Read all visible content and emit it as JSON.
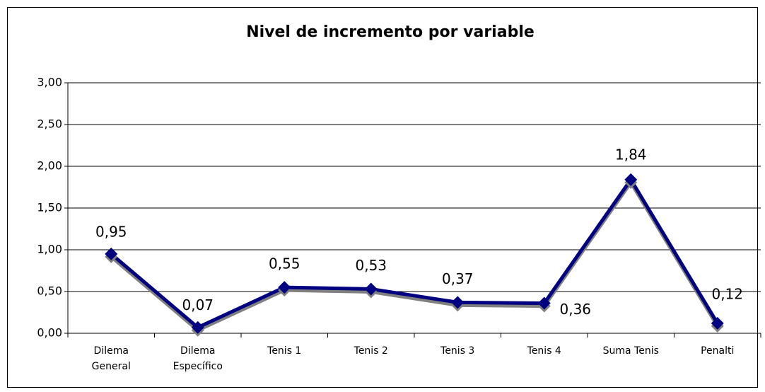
{
  "chart_data": {
    "type": "line",
    "title": "Nivel de incremento por variable",
    "categories": [
      "Dilema General",
      "Dilema Específico",
      "Tenis 1",
      "Tenis 2",
      "Tenis 3",
      "Tenis 4",
      "Suma Tenis",
      "Penalti"
    ],
    "values": [
      0.95,
      0.07,
      0.55,
      0.53,
      0.37,
      0.36,
      1.84,
      0.12
    ],
    "value_labels": [
      "0,95",
      "0,07",
      "0,55",
      "0,53",
      "0,37",
      "0,36",
      "1,84",
      "0,12"
    ],
    "color": "#000080",
    "ylim": [
      0,
      3
    ],
    "yticks": [
      {
        "value": 0,
        "label": "0,00"
      },
      {
        "value": 0.5,
        "label": "0,50"
      },
      {
        "value": 1,
        "label": "1,00"
      },
      {
        "value": 1.5,
        "label": "1,50"
      },
      {
        "value": 2,
        "label": "2,00"
      },
      {
        "value": 2.5,
        "label": "2,50"
      },
      {
        "value": 3,
        "label": "3,00"
      }
    ],
    "grid": true
  }
}
